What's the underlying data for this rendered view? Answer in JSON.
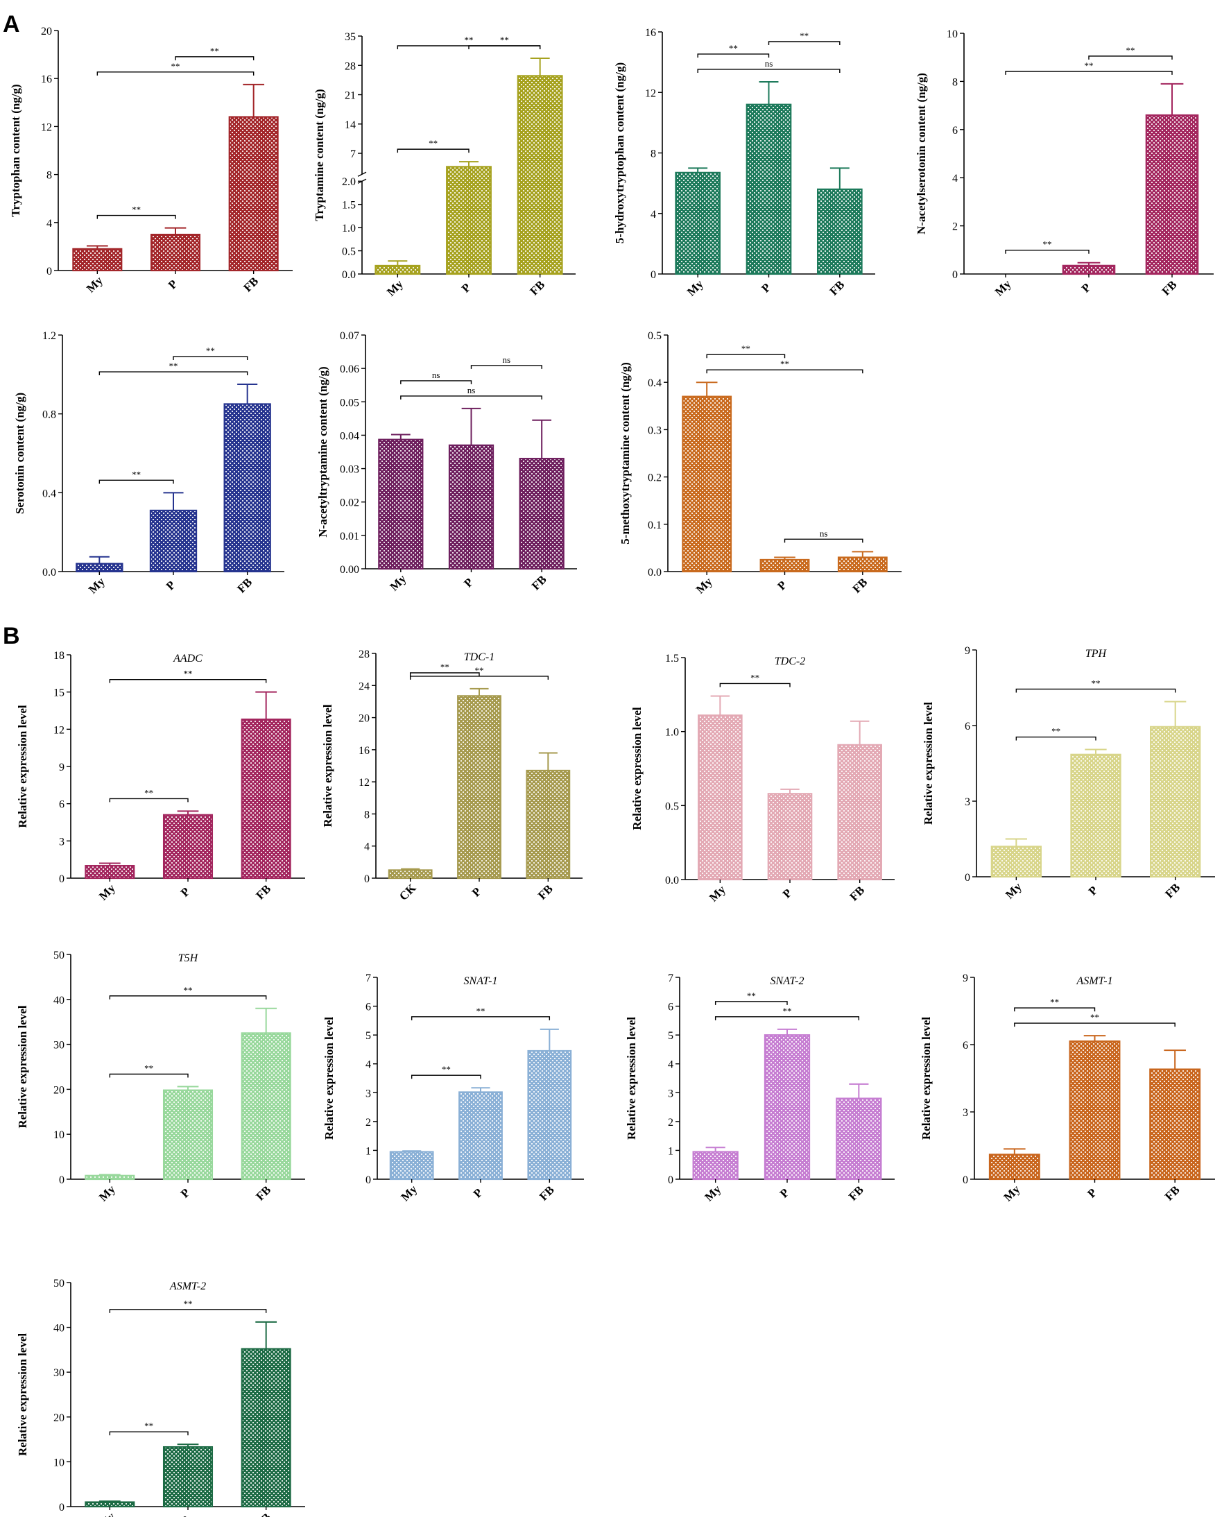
{
  "figure": {
    "panel_labels": [
      "A",
      "B"
    ],
    "pattern_color": "#d9d9d9"
  },
  "chart_data": [
    {
      "type": "bar",
      "panel": "A",
      "title": "",
      "categories": [
        "My",
        "P",
        "FB"
      ],
      "values": [
        1.8,
        3.0,
        12.8
      ],
      "errors": [
        0.25,
        0.55,
        2.7
      ],
      "ylabel": "Tryptophan content (ng/g)",
      "ylim": [
        0,
        20
      ],
      "yticks": [
        "0",
        "4",
        "8",
        "12",
        "16",
        "20"
      ],
      "color": "#a3262a",
      "brackets": [
        {
          "from": 0,
          "to": 2,
          "label": "**"
        },
        {
          "from": 1,
          "to": 2,
          "label": "**"
        },
        {
          "from": 0,
          "to": 1,
          "label": "**"
        }
      ]
    },
    {
      "type": "bar",
      "panel": "A",
      "title": "",
      "broken_axis": true,
      "categories": [
        "My",
        "P",
        "FB"
      ],
      "values": [
        0.18,
        3.8,
        25.5
      ],
      "errors": [
        0.1,
        1.2,
        4.2
      ],
      "ylabel": "Tryptamine content (ng/g)",
      "ylim_lower": [
        0,
        2.0
      ],
      "ylim_upper": [
        2.0,
        35
      ],
      "yticks_lower": [
        "0.0",
        "0.5",
        "1.0",
        "1.5",
        "2.0"
      ],
      "yticks_upper": [
        "7",
        "14",
        "21",
        "28",
        "35"
      ],
      "color": "#a6a21f",
      "brackets": [
        {
          "from": 0,
          "to": 2,
          "label": "**"
        },
        {
          "from": 1,
          "to": 2,
          "label": "**"
        },
        {
          "from": 0,
          "to": 1,
          "label": "**"
        }
      ]
    },
    {
      "type": "bar",
      "panel": "A",
      "title": "",
      "categories": [
        "My",
        "P",
        "FB"
      ],
      "values": [
        6.7,
        11.2,
        5.6
      ],
      "errors": [
        0.3,
        1.5,
        1.4
      ],
      "ylabel": "5-hydroxytryptophan content (ng/g)",
      "ylim": [
        0,
        16
      ],
      "yticks": [
        "0",
        "4",
        "8",
        "12",
        "16"
      ],
      "color": "#1d7a5b",
      "brackets": [
        {
          "from": 0,
          "to": 2,
          "label": "ns"
        },
        {
          "from": 0,
          "to": 1,
          "label": "**"
        },
        {
          "from": 1,
          "to": 2,
          "label": "**"
        }
      ]
    },
    {
      "type": "bar",
      "panel": "A",
      "title": "",
      "categories": [
        "My",
        "P",
        "FB"
      ],
      "values": [
        0.0,
        0.35,
        6.6
      ],
      "errors": [
        0.0,
        0.12,
        1.3
      ],
      "ylabel": "N-acetylserotonin content (ng/g)",
      "ylim": [
        0,
        10
      ],
      "yticks": [
        "0",
        "2",
        "4",
        "6",
        "8",
        "10"
      ],
      "color": "#a3265e",
      "brackets": [
        {
          "from": 0,
          "to": 2,
          "label": "**"
        },
        {
          "from": 1,
          "to": 2,
          "label": "**"
        },
        {
          "from": 0,
          "to": 1,
          "label": "**"
        }
      ]
    },
    {
      "type": "bar",
      "panel": "A",
      "title": "",
      "categories": [
        "My",
        "P",
        "FB"
      ],
      "values": [
        0.04,
        0.31,
        0.85
      ],
      "errors": [
        0.035,
        0.09,
        0.1
      ],
      "ylabel": "Serotonin content (ng/g)",
      "ylim": [
        0,
        1.2
      ],
      "yticks": [
        "0.0",
        "0.4",
        "0.8",
        "1.2"
      ],
      "color": "#26348f",
      "brackets": [
        {
          "from": 0,
          "to": 2,
          "label": "**"
        },
        {
          "from": 0,
          "to": 1,
          "label": "**"
        },
        {
          "from": 1,
          "to": 2,
          "label": "**"
        }
      ]
    },
    {
      "type": "bar",
      "panel": "A",
      "title": "",
      "categories": [
        "My",
        "P",
        "FB"
      ],
      "values": [
        0.0387,
        0.037,
        0.033
      ],
      "errors": [
        0.0015,
        0.011,
        0.0115
      ],
      "ylabel": "N-acetyltryptamine content (ng/g)",
      "ylim": [
        0,
        0.07
      ],
      "yticks": [
        "0.00",
        "0.01",
        "0.02",
        "0.03",
        "0.04",
        "0.05",
        "0.06",
        "0.07"
      ],
      "color": "#6e1f5e",
      "brackets": [
        {
          "from": 0,
          "to": 2,
          "label": "ns"
        },
        {
          "from": 0,
          "to": 1,
          "label": "ns"
        },
        {
          "from": 1,
          "to": 2,
          "label": "ns"
        }
      ]
    },
    {
      "type": "bar",
      "panel": "A",
      "title": "",
      "categories": [
        "My",
        "P",
        "FB"
      ],
      "values": [
        0.37,
        0.025,
        0.03
      ],
      "errors": [
        0.03,
        0.005,
        0.012
      ],
      "ylabel": "5-methoxytryptamine content (ng/g)",
      "ylim": [
        0,
        0.5
      ],
      "yticks": [
        "0.0",
        "0.1",
        "0.2",
        "0.3",
        "0.4",
        "0.5"
      ],
      "color": "#c96a1e",
      "brackets": [
        {
          "from": 0,
          "to": 2,
          "label": "**"
        },
        {
          "from": 0,
          "to": 1,
          "label": "**"
        },
        {
          "from": 1,
          "to": 2,
          "label": "ns"
        }
      ]
    },
    {
      "type": "bar",
      "panel": "B",
      "title": "AADC",
      "categories": [
        "My",
        "P",
        "FB"
      ],
      "values": [
        1.0,
        5.1,
        12.8
      ],
      "errors": [
        0.2,
        0.3,
        2.2
      ],
      "ylabel": "Relative expression level",
      "ylim": [
        0,
        18
      ],
      "yticks": [
        "0",
        "3",
        "6",
        "9",
        "12",
        "15",
        "18"
      ],
      "color": "#a3265e",
      "brackets": [
        {
          "from": 0,
          "to": 2,
          "label": "**"
        },
        {
          "from": 0,
          "to": 1,
          "label": "**"
        }
      ]
    },
    {
      "type": "bar",
      "panel": "B",
      "title": "TDC-1",
      "categories": [
        "CK",
        "P",
        "FB"
      ],
      "values": [
        1.0,
        22.7,
        13.4
      ],
      "errors": [
        0.15,
        0.9,
        2.2
      ],
      "ylabel": "Relative expression level",
      "ylim": [
        0,
        28
      ],
      "yticks": [
        "0",
        "4",
        "8",
        "12",
        "16",
        "20",
        "24",
        "28"
      ],
      "color": "#a69a4e",
      "brackets": [
        {
          "from": 0,
          "to": 2,
          "label": "**"
        },
        {
          "from": 0,
          "to": 1,
          "label": "**"
        }
      ]
    },
    {
      "type": "bar",
      "panel": "B",
      "title": "TDC-2",
      "categories": [
        "My",
        "P",
        "FB"
      ],
      "values": [
        1.11,
        0.58,
        0.91
      ],
      "errors": [
        0.13,
        0.03,
        0.16
      ],
      "ylabel": "Relative expression level",
      "ylim": [
        0,
        1.5
      ],
      "yticks": [
        "0.0",
        "0.5",
        "1.0",
        "1.5"
      ],
      "color": "#e3a9b4",
      "brackets": [
        {
          "from": 0,
          "to": 1,
          "label": "**"
        }
      ]
    },
    {
      "type": "bar",
      "panel": "B",
      "title": "TPH",
      "categories": [
        "My",
        "P",
        "FB"
      ],
      "values": [
        1.2,
        4.85,
        5.95
      ],
      "errors": [
        0.3,
        0.2,
        1.0
      ],
      "ylabel": "Relative expression level",
      "ylim": [
        0,
        9
      ],
      "yticks": [
        "0",
        "3",
        "6",
        "9"
      ],
      "color": "#d8d58a",
      "brackets": [
        {
          "from": 0,
          "to": 2,
          "label": "**"
        },
        {
          "from": 0,
          "to": 1,
          "label": "**"
        }
      ]
    },
    {
      "type": "bar",
      "panel": "B",
      "title": "T5H",
      "categories": [
        "My",
        "P",
        "FB"
      ],
      "values": [
        0.8,
        19.8,
        32.5
      ],
      "errors": [
        0.2,
        0.8,
        5.5
      ],
      "ylabel": "Relative expression level",
      "ylim": [
        0,
        50
      ],
      "yticks": [
        "0",
        "10",
        "20",
        "30",
        "40",
        "50"
      ],
      "color": "#98d89c",
      "brackets": [
        {
          "from": 0,
          "to": 2,
          "label": "**"
        },
        {
          "from": 0,
          "to": 1,
          "label": "**"
        }
      ]
    },
    {
      "type": "bar",
      "panel": "B",
      "title": "SNAT-1",
      "categories": [
        "My",
        "P",
        "FB"
      ],
      "values": [
        0.95,
        3.02,
        4.45
      ],
      "errors": [
        0.03,
        0.15,
        0.75
      ],
      "ylabel": "Relative expression level",
      "ylim": [
        0,
        7
      ],
      "yticks": [
        "0",
        "1",
        "2",
        "3",
        "4",
        "5",
        "6",
        "7"
      ],
      "color": "#8ab0d6",
      "brackets": [
        {
          "from": 0,
          "to": 2,
          "label": "**"
        },
        {
          "from": 0,
          "to": 1,
          "label": "**"
        }
      ]
    },
    {
      "type": "bar",
      "panel": "B",
      "title": "SNAT-2",
      "categories": [
        "My",
        "P",
        "FB"
      ],
      "values": [
        0.95,
        5.0,
        2.8
      ],
      "errors": [
        0.15,
        0.2,
        0.5
      ],
      "ylabel": "Relative expression level",
      "ylim": [
        0,
        7
      ],
      "yticks": [
        "0",
        "1",
        "2",
        "3",
        "4",
        "5",
        "6",
        "7"
      ],
      "color": "#c67ed2",
      "brackets": [
        {
          "from": 0,
          "to": 2,
          "label": "**"
        },
        {
          "from": 0,
          "to": 1,
          "label": "**"
        }
      ]
    },
    {
      "type": "bar",
      "panel": "B",
      "title": "ASMT-1",
      "categories": [
        "My",
        "P",
        "FB"
      ],
      "values": [
        1.1,
        6.15,
        4.9
      ],
      "errors": [
        0.25,
        0.25,
        0.85
      ],
      "ylabel": "Relative expression level",
      "ylim": [
        0,
        9
      ],
      "yticks": [
        "0",
        "3",
        "6",
        "9"
      ],
      "color": "#c9661e",
      "brackets": [
        {
          "from": 0,
          "to": 2,
          "label": "**"
        },
        {
          "from": 0,
          "to": 1,
          "label": "**"
        }
      ]
    },
    {
      "type": "bar",
      "panel": "B",
      "title": "ASMT-2",
      "categories": [
        "My",
        "P",
        "FB"
      ],
      "values": [
        1.0,
        13.3,
        35.2
      ],
      "errors": [
        0.2,
        0.6,
        6.0
      ],
      "ylabel": "Relative expression level",
      "ylim": [
        0,
        50
      ],
      "yticks": [
        "0",
        "10",
        "20",
        "30",
        "40",
        "50"
      ],
      "color": "#1d6b45",
      "brackets": [
        {
          "from": 0,
          "to": 2,
          "label": "**"
        },
        {
          "from": 0,
          "to": 1,
          "label": "**"
        }
      ]
    }
  ]
}
